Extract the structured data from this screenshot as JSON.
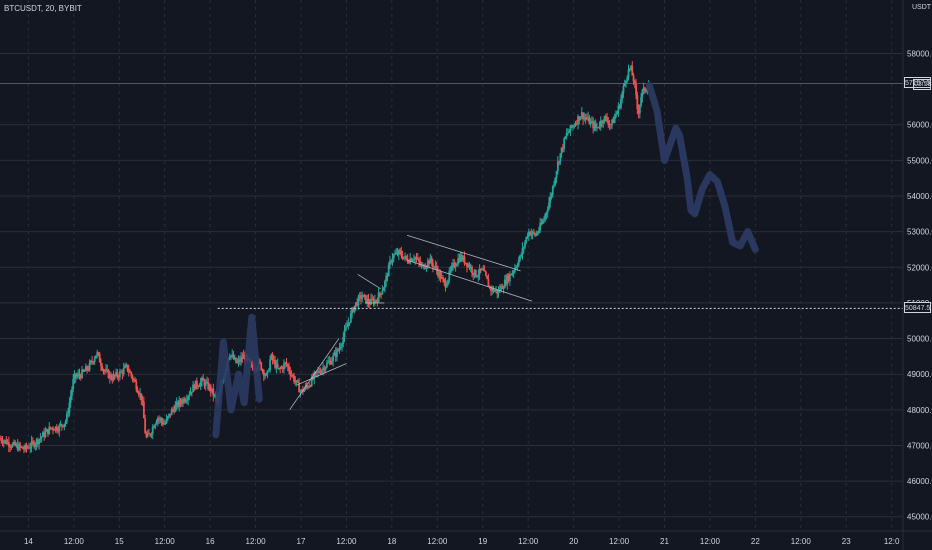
{
  "header": {
    "symbol_line": "BTCUSDT, 20, BYBIT"
  },
  "axis": {
    "unit_label": "USDT"
  },
  "current_price": {
    "label": "57157.5",
    "value": 57157.5,
    "countdown": "03:58"
  },
  "reference_price": {
    "label": "50847.5",
    "value": 50847.5
  },
  "colors": {
    "background": "#131722",
    "up": "#26a69a",
    "down": "#ef5350",
    "grid": "#2a2e39",
    "axis_text": "#d1d4dc",
    "projection": "#2b3a63"
  },
  "chart_data": {
    "type": "candlestick",
    "title": "BTCUSDT, 20, BYBIT",
    "xlabel": "",
    "ylabel": "",
    "ylim": [
      44600,
      59500
    ],
    "y_ticks": [
      {
        "value": 45000,
        "label": "45000.0"
      },
      {
        "value": 46000,
        "label": "46000.0"
      },
      {
        "value": 47000,
        "label": "47000.0"
      },
      {
        "value": 48000,
        "label": "48000.0"
      },
      {
        "value": 49000,
        "label": "49000.0"
      },
      {
        "value": 50000,
        "label": "50000.0"
      },
      {
        "value": 51000,
        "label": "51000.0"
      },
      {
        "value": 52000,
        "label": "52000.0"
      },
      {
        "value": 53000,
        "label": "53000.0"
      },
      {
        "value": 54000,
        "label": "54000.0"
      },
      {
        "value": 55000,
        "label": "55000.0"
      },
      {
        "value": 56000,
        "label": "56000.0"
      },
      {
        "value": 58000,
        "label": "58000.0"
      }
    ],
    "x_ticks": [
      {
        "label": "14",
        "t": 0
      },
      {
        "label": "12:00",
        "t": 12
      },
      {
        "label": "15",
        "t": 24
      },
      {
        "label": "12:00",
        "t": 36
      },
      {
        "label": "16",
        "t": 48
      },
      {
        "label": "12:00",
        "t": 60
      },
      {
        "label": "17",
        "t": 72
      },
      {
        "label": "12:00",
        "t": 84
      },
      {
        "label": "18",
        "t": 96
      },
      {
        "label": "12:00",
        "t": 108
      },
      {
        "label": "19",
        "t": 120
      },
      {
        "label": "12:00",
        "t": 132
      },
      {
        "label": "20",
        "t": 144
      },
      {
        "label": "12:00",
        "t": 156
      },
      {
        "label": "21",
        "t": 168
      },
      {
        "label": "12:00",
        "t": 180
      },
      {
        "label": "22",
        "t": 192
      },
      {
        "label": "12:00",
        "t": 204
      },
      {
        "label": "23",
        "t": 216
      },
      {
        "label": "12:0",
        "t": 228
      }
    ],
    "x_range": [
      -7.5,
      231
    ],
    "grid": true,
    "price_path": [
      [
        -7.5,
        47200
      ],
      [
        -4,
        47000
      ],
      [
        -1,
        46900
      ],
      [
        2,
        47100
      ],
      [
        4,
        47300
      ],
      [
        6,
        47500
      ],
      [
        8,
        47500
      ],
      [
        10,
        47700
      ],
      [
        12,
        48900
      ],
      [
        14,
        49000
      ],
      [
        16,
        49200
      ],
      [
        18,
        49600
      ],
      [
        20,
        49100
      ],
      [
        22,
        48900
      ],
      [
        24,
        49000
      ],
      [
        26,
        49200
      ],
      [
        28,
        48800
      ],
      [
        30,
        48300
      ],
      [
        31,
        47200
      ],
      [
        32,
        47300
      ],
      [
        34,
        47800
      ],
      [
        36,
        47600
      ],
      [
        38,
        48000
      ],
      [
        40,
        48200
      ],
      [
        42,
        48400
      ],
      [
        44,
        48700
      ],
      [
        46,
        48800
      ],
      [
        48,
        48600
      ],
      [
        50,
        48200
      ],
      [
        51,
        48700
      ],
      [
        53,
        49600
      ],
      [
        55,
        49300
      ],
      [
        57,
        49500
      ],
      [
        59,
        49200
      ],
      [
        61,
        49300
      ],
      [
        63,
        48900
      ],
      [
        64,
        49500
      ],
      [
        66,
        49100
      ],
      [
        68,
        49300
      ],
      [
        70,
        48900
      ],
      [
        72,
        48500
      ],
      [
        74,
        48700
      ],
      [
        76,
        49000
      ],
      [
        78,
        49200
      ],
      [
        80,
        49400
      ],
      [
        82,
        49700
      ],
      [
        84,
        50300
      ],
      [
        86,
        50900
      ],
      [
        88,
        51200
      ],
      [
        90,
        51000
      ],
      [
        92,
        51100
      ],
      [
        94,
        51500
      ],
      [
        96,
        52300
      ],
      [
        98,
        52400
      ],
      [
        100,
        52200
      ],
      [
        102,
        52300
      ],
      [
        104,
        52000
      ],
      [
        106,
        52200
      ],
      [
        108,
        51900
      ],
      [
        110,
        51500
      ],
      [
        112,
        52000
      ],
      [
        114,
        52300
      ],
      [
        116,
        52100
      ],
      [
        118,
        51800
      ],
      [
        120,
        51900
      ],
      [
        122,
        51400
      ],
      [
        124,
        51300
      ],
      [
        126,
        51600
      ],
      [
        128,
        51900
      ],
      [
        130,
        52300
      ],
      [
        132,
        53000
      ],
      [
        134,
        52900
      ],
      [
        136,
        53300
      ],
      [
        138,
        54000
      ],
      [
        140,
        55000
      ],
      [
        142,
        55700
      ],
      [
        144,
        56000
      ],
      [
        146,
        56300
      ],
      [
        148,
        56100
      ],
      [
        150,
        55900
      ],
      [
        152,
        56200
      ],
      [
        154,
        56000
      ],
      [
        156,
        56500
      ],
      [
        158,
        57400
      ],
      [
        159,
        57600
      ],
      [
        160,
        57200
      ],
      [
        161,
        56300
      ],
      [
        162,
        56900
      ],
      [
        163,
        57000
      ],
      [
        164,
        57157.5
      ]
    ],
    "projection_path": [
      [
        164,
        57100
      ],
      [
        166,
        56400
      ],
      [
        168,
        55000
      ],
      [
        170,
        55600
      ],
      [
        171,
        55900
      ],
      [
        172,
        55700
      ],
      [
        174,
        54500
      ],
      [
        175,
        53600
      ],
      [
        176,
        53500
      ],
      [
        178,
        54200
      ],
      [
        180,
        54600
      ],
      [
        182,
        54400
      ],
      [
        184,
        53700
      ],
      [
        186,
        52700
      ],
      [
        188,
        52600
      ],
      [
        190,
        53000
      ],
      [
        192,
        52500
      ]
    ]
  }
}
